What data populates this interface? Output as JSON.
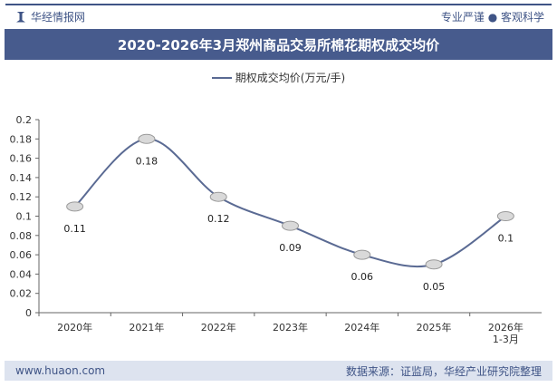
{
  "header": {
    "brand": "华经情报网",
    "slogan": "专业严谨 ● 客观科学",
    "title": "2020-2026年3月郑州商品交易所棉花期权成交均价"
  },
  "footer": {
    "url": "www.huaon.com",
    "source": "数据来源：证监局，华经产业研究院整理"
  },
  "colors": {
    "line": "#5a6a93",
    "header": "#475b8d"
  },
  "chart_data": {
    "type": "line",
    "categories": [
      "2020年",
      "2021年",
      "2022年",
      "2023年",
      "2024年",
      "2025年",
      "2026年\n1-3月"
    ],
    "series": [
      {
        "name": "期权成交均价(万元/手)",
        "values": [
          0.11,
          0.18,
          0.12,
          0.09,
          0.06,
          0.05,
          0.1
        ]
      }
    ],
    "data_labels": [
      "0.11",
      "0.18",
      "0.12",
      "0.09",
      "0.06",
      "0.05",
      "0.1"
    ],
    "ylim": [
      0,
      0.2
    ],
    "yticks": [
      "0",
      "0.02",
      "0.04",
      "0.06",
      "0.08",
      "0.1",
      "0.12",
      "0.14",
      "0.16",
      "0.18",
      "0.2"
    ],
    "grid": false,
    "legend": "top"
  }
}
